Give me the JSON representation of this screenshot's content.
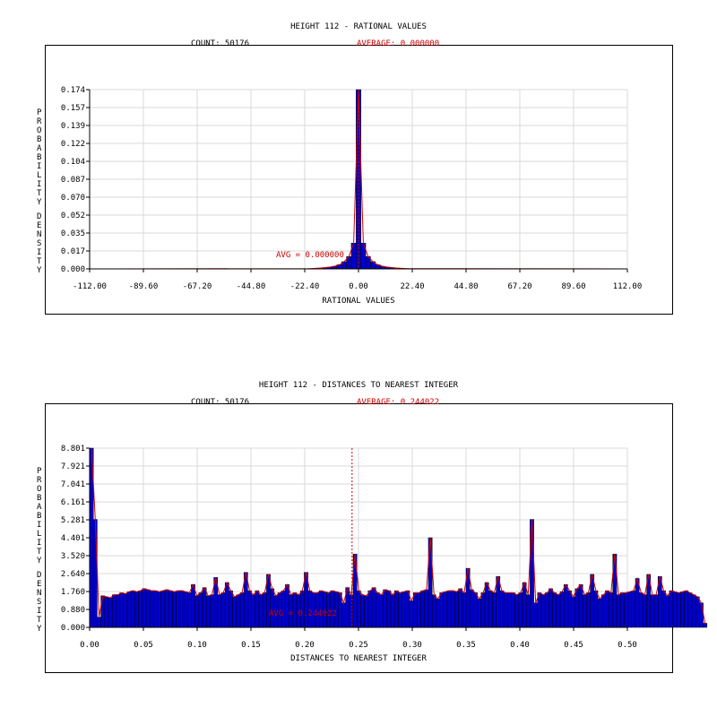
{
  "chart_data": [
    {
      "type": "bar",
      "title": "HEIGHT 112 - RATIONAL VALUES",
      "count_label": "COUNT: 50176",
      "average_label": "AVERAGE: 0.000000",
      "avg_marker_label": "AVG = 0.000000",
      "average": 0.0,
      "xlabel": "RATIONAL VALUES",
      "ylabel": "PROBABILITY DENSITY",
      "xlim": [
        -112.0,
        112.0
      ],
      "ylim": [
        0.0,
        0.174
      ],
      "x_ticks": [
        "-112.00",
        "-89.60",
        "-67.20",
        "-44.80",
        "-22.40",
        "0.00",
        "22.40",
        "44.80",
        "67.20",
        "89.60",
        "112.00"
      ],
      "y_ticks": [
        "0.000",
        "0.017",
        "0.035",
        "0.052",
        "0.070",
        "0.087",
        "0.104",
        "0.122",
        "0.139",
        "0.157",
        "0.174"
      ],
      "grid": true,
      "bar_color": "#0000cc",
      "curve_color": "#cc0000",
      "series": [
        {
          "x": [
            -20,
            -18,
            -16,
            -14,
            -12,
            -10,
            -8,
            -6,
            -4,
            -2,
            0,
            2,
            4,
            6,
            8,
            10,
            12,
            14,
            16,
            18,
            20
          ],
          "values": [
            0.0003,
            0.0005,
            0.0008,
            0.0012,
            0.0017,
            0.0025,
            0.004,
            0.007,
            0.012,
            0.025,
            0.174,
            0.025,
            0.012,
            0.007,
            0.004,
            0.0025,
            0.0017,
            0.0012,
            0.0008,
            0.0005,
            0.0003
          ]
        }
      ]
    },
    {
      "type": "bar",
      "title": "HEIGHT 112 - DISTANCES TO NEAREST INTEGER",
      "count_label": "COUNT: 50176",
      "average_label": "AVERAGE: 0.244022",
      "avg_marker_label": "AVG = 0.244022",
      "average": 0.244022,
      "xlabel": "DISTANCES TO NEAREST INTEGER",
      "ylabel": "PROBABILITY DENSITY",
      "xlim": [
        0.0,
        0.5
      ],
      "ylim": [
        0.0,
        8.801
      ],
      "x_ticks": [
        "0.00",
        "0.05",
        "0.10",
        "0.15",
        "0.20",
        "0.25",
        "0.30",
        "0.35",
        "0.40",
        "0.45",
        "0.50"
      ],
      "y_ticks": [
        "0.000",
        "0.880",
        "1.760",
        "2.640",
        "3.520",
        "4.401",
        "5.281",
        "6.161",
        "7.041",
        "7.921",
        "8.801"
      ],
      "grid": true,
      "bar_color": "#0000cc",
      "curve_color": "#cc0000",
      "series": [
        {
          "x_start": 0.0,
          "bin_width": 0.0035,
          "values": [
            8.8,
            5.3,
            0.5,
            1.55,
            1.5,
            1.45,
            1.6,
            1.6,
            1.7,
            1.65,
            1.75,
            1.8,
            1.75,
            1.8,
            1.9,
            1.85,
            1.8,
            1.8,
            1.75,
            1.8,
            1.85,
            1.8,
            1.75,
            1.8,
            1.8,
            1.75,
            1.7,
            2.1,
            1.55,
            1.7,
            1.95,
            1.55,
            1.6,
            2.45,
            1.6,
            1.7,
            2.2,
            1.8,
            1.5,
            1.6,
            1.7,
            2.7,
            1.8,
            1.6,
            1.8,
            1.6,
            1.7,
            2.6,
            1.9,
            1.55,
            1.7,
            1.8,
            2.1,
            1.6,
            1.7,
            1.6,
            1.8,
            2.7,
            1.8,
            1.7,
            1.7,
            1.8,
            1.75,
            1.7,
            1.8,
            1.75,
            1.7,
            1.2,
            1.95,
            1.6,
            3.6,
            1.8,
            1.6,
            1.55,
            1.8,
            1.95,
            1.7,
            1.6,
            1.85,
            1.8,
            1.6,
            1.8,
            1.7,
            1.75,
            1.8,
            1.3,
            1.7,
            1.7,
            1.8,
            1.85,
            4.4,
            1.6,
            1.4,
            1.7,
            1.75,
            1.8,
            1.8,
            1.75,
            1.9,
            1.7,
            2.9,
            1.85,
            1.7,
            1.4,
            1.7,
            2.2,
            1.8,
            1.7,
            2.5,
            1.8,
            1.7,
            1.7,
            1.7,
            1.6,
            1.7,
            2.2,
            1.6,
            5.3,
            1.2,
            1.7,
            1.6,
            1.7,
            1.9,
            1.7,
            1.6,
            1.75,
            2.1,
            1.8,
            1.5,
            1.9,
            2.1,
            1.6,
            1.7,
            2.6,
            1.8,
            1.4,
            1.6,
            1.8,
            1.7,
            3.6,
            1.6,
            1.7,
            1.7,
            1.75,
            1.8,
            2.4,
            1.7,
            1.6,
            2.6,
            1.6,
            1.6,
            2.5,
            1.8,
            1.55,
            1.8,
            1.75,
            1.7,
            1.75,
            1.8,
            1.7,
            1.6,
            1.5,
            1.2,
            0.2
          ]
        }
      ]
    }
  ]
}
